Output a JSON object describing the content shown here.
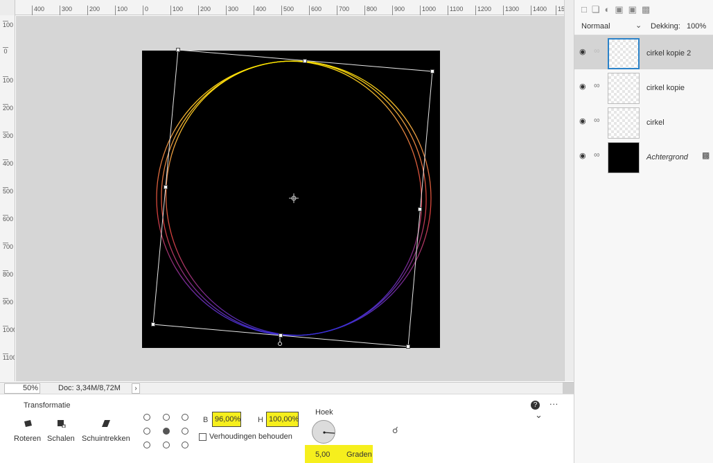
{
  "ruler": {
    "h_labels": [
      "400",
      "300",
      "200",
      "100",
      "0",
      "100",
      "200",
      "300",
      "400",
      "500",
      "600",
      "700",
      "800",
      "900",
      "1000",
      "1100",
      "1200",
      "1300",
      "1400",
      "15"
    ],
    "v_labels": [
      "100",
      "0",
      "100",
      "200",
      "300",
      "400",
      "500",
      "600",
      "700",
      "800",
      "900",
      "1000",
      "1100"
    ]
  },
  "statusbar": {
    "zoom": "50%",
    "doc_info": "Doc: 3,34M/8,72M",
    "arrow": "›"
  },
  "transform": {
    "title": "Transformatie",
    "tools": [
      {
        "label": "Roteren",
        "icon": "rotate-icon"
      },
      {
        "label": "Schalen",
        "icon": "scale-icon"
      },
      {
        "label": "Schuintrekken",
        "icon": "skew-icon"
      }
    ],
    "width_label": "B",
    "width_value": "96,00%",
    "height_label": "H",
    "height_value": "100,00%",
    "constrain_label": "Verhoudingen behouden",
    "angle_label": "Hoek",
    "angle_value": "5,00",
    "angle_unit": "Graden",
    "help_icon": "?",
    "more_icon": "···",
    "collapse_icon": "⌄"
  },
  "layers_panel": {
    "blend_mode": "Normaal",
    "opacity_label": "Dekking:",
    "opacity_value": "100%",
    "layers": [
      {
        "name": "cirkel kopie 2",
        "selected": true,
        "thumb": "transparent",
        "italic": false
      },
      {
        "name": "cirkel kopie",
        "selected": false,
        "thumb": "transparent",
        "italic": false
      },
      {
        "name": "cirkel",
        "selected": false,
        "thumb": "transparent",
        "italic": false
      },
      {
        "name": "Achtergrond",
        "selected": false,
        "thumb": "black",
        "italic": true,
        "locked": true
      }
    ]
  },
  "colors": {
    "highlight": "#f6ef1d",
    "selection_blue": "#2a82c9",
    "circle_top": "#ffe600",
    "circle_mid": "#e0403a",
    "circle_bottom": "#3a2fd6"
  }
}
